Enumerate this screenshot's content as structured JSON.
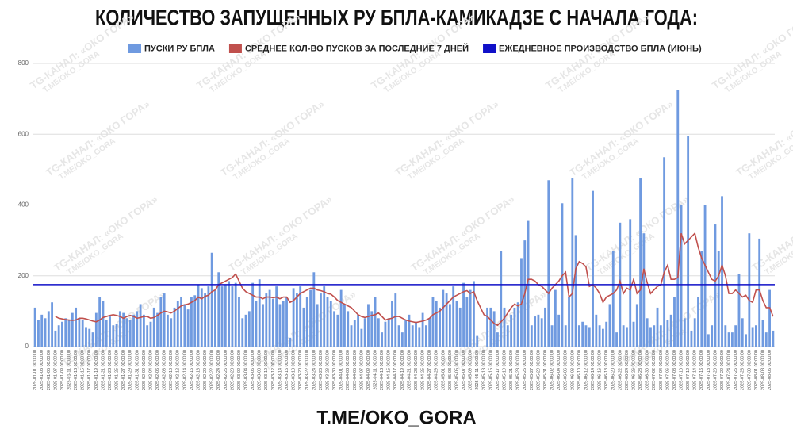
{
  "chart_data": {
    "type": "bar",
    "title": "КОЛИЧЕСТВО ЗАПУЩЕННЫХ РУ БПЛА-КАМИКАДЗЕ С НАЧАЛА ГОДА:",
    "footer": "T.ME/OKO_GORA",
    "watermark": [
      "TG-КАНАЛ: «ОКО ГОРА»",
      "T.ME/OKO_GORA"
    ],
    "categories": [
      "2025-01-01 00:00:00",
      null,
      "2025-01-03 00:00:00",
      null,
      "2025-01-05 00:00:00",
      null,
      "2025-01-07 00:00:00",
      null,
      "2025-01-09 00:00:00",
      null,
      "2025-01-11 00:00:00",
      null,
      "2025-01-13 00:00:00",
      null,
      "2025-01-15 00:00:00",
      null,
      "2025-01-17 00:00:00",
      null,
      "2025-01-19 00:00:00",
      null,
      "2025-01-21 00:00:00",
      null,
      "2025-01-23 00:00:00",
      null,
      "2025-01-25 00:00:00",
      null,
      "2025-01-27 00:00:00",
      null,
      "2025-01-29 00:00:00",
      null,
      "2025-01-31 00:00:00",
      null,
      "2025-02-02 00:00:00",
      null,
      "2025-02-04 00:00:00",
      null,
      "2025-02-06 00:00:00",
      null,
      "2025-02-08 00:00:00",
      null,
      "2025-02-10 00:00:00",
      null,
      "2025-02-12 00:00:00",
      null,
      "2025-02-14 00:00:00",
      null,
      "2025-02-16 00:00:00",
      null,
      "2025-02-18 00:00:00",
      null,
      "2025-02-20 00:00:00",
      null,
      "2025-02-22 00:00:00",
      null,
      "2025-02-24 00:00:00",
      null,
      "2025-02-26 00:00:00",
      null,
      "2025-02-28 00:00:00",
      null,
      "2025-03-02 00:00:00",
      null,
      "2025-03-04 00:00:00",
      null,
      "2025-03-06 00:00:00",
      null,
      "2025-03-08 00:00:00",
      null,
      "2025-03-10 00:00:00",
      null,
      "2025-03-12 00:00:00",
      null,
      "2025-03-14 00:00:00",
      null,
      "2025-03-16 00:00:00",
      null,
      "2025-03-18 00:00:00",
      null,
      "2025-03-20 00:00:00",
      null,
      "2025-03-22 00:00:00",
      null,
      "2025-03-24 00:00:00",
      null,
      "2025-03-26 00:00:00",
      null,
      "2025-03-28 00:00:00",
      null,
      "2025-03-30 00:00:00",
      null,
      "2025-04-01 00:00:00",
      null,
      "2025-04-03 00:00:00",
      null,
      "2025-04-05 00:00:00",
      null,
      "2025-04-07 00:00:00",
      null,
      "2025-04-09 00:00:00",
      null,
      "2025-04-11 00:00:00",
      null,
      "2025-04-13 00:00:00",
      null,
      "2025-04-15 00:00:00",
      null,
      "2025-04-17 00:00:00",
      null,
      "2025-04-19 00:00:00",
      null,
      "2025-04-21 00:00:00",
      null,
      "2025-04-23 00:00:00",
      null,
      "2025-04-25 00:00:00",
      null,
      "2025-04-27 00:00:00",
      null,
      "2025-04-29 00:00:00",
      null,
      "2025-05-01 00:00:00",
      null,
      "2025-05-03 00:00:00",
      null,
      "2025-05-05 00:00:00",
      null,
      "2025-05-07 00:00:00",
      null,
      "2025-05-09 00:00:00",
      null,
      "2025-05-11 00:00:00",
      null,
      "2025-05-13 00:00:00",
      null,
      "2025-05-15 00:00:00",
      null,
      "2025-05-17 00:00:00",
      null,
      "2025-05-19 00:00:00",
      null,
      "2025-05-21 00:00:00",
      null,
      "2025-05-23 00:00:00",
      null,
      "2025-05-25 00:00:00",
      null,
      "2025-05-27 00:00:00",
      null,
      "2025-05-29 00:00:00",
      null,
      "2025-05-31 00:00:00",
      null,
      "2025-06-02 00:00:00",
      null,
      "2025-06-04 00:00:00",
      null,
      "2025-06-06 00:00:00",
      null,
      "2025-06-08 00:00:00",
      null,
      "2025-06-10 00:00:00",
      null,
      "2025-06-12 00:00:00",
      null,
      "2025-06-14 00:00:00",
      null,
      "2025-06-16 00:00:00",
      null,
      "2025-06-18 00:00:00",
      null,
      "2025-06-20 00:00:00",
      null,
      "2025-06-22 00:00:00",
      null,
      "2025-06-24 00:00:00",
      null,
      "2025-06-26 00:00:00",
      null,
      "2025-06-28 00:00:00",
      null,
      "2025-06-30 00:00:00",
      null,
      "2025-07-02 00:00:00",
      null,
      "2025-07-04 00:00:00",
      null,
      "2025-07-06 00:00:00",
      null,
      "2025-07-08 00:00:00",
      null,
      "2025-07-10 00:00:00",
      null,
      "2025-07-12 00:00:00",
      null,
      "2025-07-14 00:00:00",
      null,
      "2025-07-16 00:00:00",
      null,
      "2025-07-18 00:00:00",
      null,
      "2025-07-20 00:00:00",
      null,
      "2025-07-22 00:00:00",
      null,
      "2025-07-24 00:00:00",
      null,
      "2025-07-26 00:00:00",
      null,
      "2025-07-28 00:00:00",
      null,
      "2025-07-30 00:00:00",
      null,
      "2025-08-01 00:00:00",
      null,
      "2025-08-03 00:00:00",
      null,
      "2025-08-05 00:00:00",
      null
    ],
    "series": [
      {
        "name": "ПУСКИ РУ БПЛА",
        "color": "#6f9ae0",
        "type": "bar",
        "values": [
          110,
          75,
          90,
          80,
          100,
          125,
          45,
          60,
          70,
          80,
          75,
          95,
          110,
          80,
          75,
          55,
          50,
          40,
          95,
          140,
          130,
          75,
          85,
          60,
          65,
          100,
          95,
          80,
          75,
          90,
          100,
          120,
          90,
          60,
          70,
          110,
          95,
          140,
          150,
          90,
          80,
          110,
          130,
          140,
          120,
          105,
          140,
          145,
          175,
          165,
          150,
          170,
          265,
          160,
          210,
          170,
          175,
          185,
          170,
          180,
          140,
          80,
          90,
          100,
          180,
          130,
          190,
          120,
          150,
          160,
          135,
          170,
          120,
          130,
          140,
          25,
          165,
          150,
          170,
          110,
          140,
          160,
          210,
          120,
          150,
          170,
          140,
          130,
          100,
          90,
          160,
          120,
          100,
          60,
          75,
          90,
          50,
          80,
          120,
          100,
          140,
          80,
          40,
          70,
          80,
          130,
          150,
          60,
          40,
          75,
          90,
          60,
          70,
          55,
          95,
          60,
          80,
          140,
          130,
          110,
          160,
          150,
          120,
          170,
          130,
          110,
          180,
          140,
          160,
          185,
          30,
          0,
          0,
          110,
          110,
          100,
          40,
          270,
          110,
          60,
          90,
          110,
          125,
          250,
          300,
          355,
          60,
          85,
          90,
          80,
          110,
          470,
          60,
          160,
          90,
          405,
          60,
          140,
          475,
          315,
          60,
          70,
          60,
          55,
          440,
          90,
          60,
          50,
          70,
          120,
          270,
          40,
          350,
          60,
          55,
          360,
          70,
          120,
          475,
          320,
          80,
          55,
          60,
          110,
          60,
          535,
          75,
          90,
          140,
          725,
          400,
          80,
          595,
          45,
          80,
          140,
          270,
          400,
          35,
          60,
          345,
          270,
          425,
          60,
          40,
          40,
          60,
          205,
          80,
          35,
          320,
          55,
          60,
          305,
          75,
          40,
          160,
          45
        ]
      },
      {
        "name": "СРЕДНЕЕ КОЛ-ВО ПУСКОВ ЗА ПОСЛЕДНИЕ 7 ДНЕЙ",
        "color": "#c0504d",
        "type": "line",
        "values": [
          null,
          null,
          null,
          null,
          null,
          null,
          85,
          80,
          78,
          76,
          75,
          74,
          75,
          80,
          80,
          78,
          75,
          72,
          70,
          75,
          82,
          85,
          88,
          90,
          88,
          85,
          80,
          85,
          88,
          85,
          80,
          82,
          85,
          85,
          80,
          82,
          88,
          95,
          100,
          98,
          95,
          100,
          108,
          115,
          118,
          120,
          125,
          130,
          140,
          135,
          142,
          145,
          155,
          160,
          175,
          180,
          185,
          190,
          195,
          205,
          185,
          165,
          155,
          150,
          145,
          140,
          140,
          135,
          140,
          140,
          138,
          140,
          135,
          140,
          140,
          125,
          130,
          140,
          150,
          155,
          160,
          165,
          165,
          160,
          158,
          155,
          150,
          148,
          140,
          130,
          125,
          120,
          115,
          110,
          100,
          90,
          85,
          82,
          85,
          88,
          90,
          95,
          85,
          75,
          78,
          80,
          85,
          85,
          80,
          75,
          72,
          70,
          68,
          70,
          72,
          75,
          80,
          90,
          95,
          100,
          110,
          120,
          130,
          140,
          145,
          150,
          155,
          158,
          150,
          155,
          130,
          110,
          90,
          85,
          75,
          65,
          60,
          70,
          80,
          95,
          110,
          120,
          115,
          120,
          150,
          190,
          190,
          185,
          175,
          170,
          160,
          150,
          165,
          175,
          185,
          200,
          210,
          140,
          150,
          220,
          240,
          235,
          225,
          170,
          175,
          165,
          150,
          125,
          140,
          145,
          150,
          160,
          185,
          150,
          165,
          160,
          190,
          150,
          160,
          220,
          180,
          150,
          160,
          170,
          175,
          210,
          230,
          190,
          190,
          195,
          320,
          290,
          300,
          310,
          320,
          280,
          250,
          230,
          210,
          190,
          185,
          200,
          230,
          200,
          150,
          150,
          160,
          150,
          140,
          145,
          130,
          125,
          160,
          160,
          130,
          110,
          110,
          85
        ]
      }
    ],
    "reference_line": {
      "name": "ЕЖЕДНЕВНОЕ ПРОИЗВОДСТВО БПЛА (ИЮНЬ)",
      "color": "#1010c8",
      "value": 175
    },
    "ylim": [
      0,
      800
    ],
    "yticks": [
      0,
      200,
      400,
      600,
      800
    ],
    "grid": true
  }
}
